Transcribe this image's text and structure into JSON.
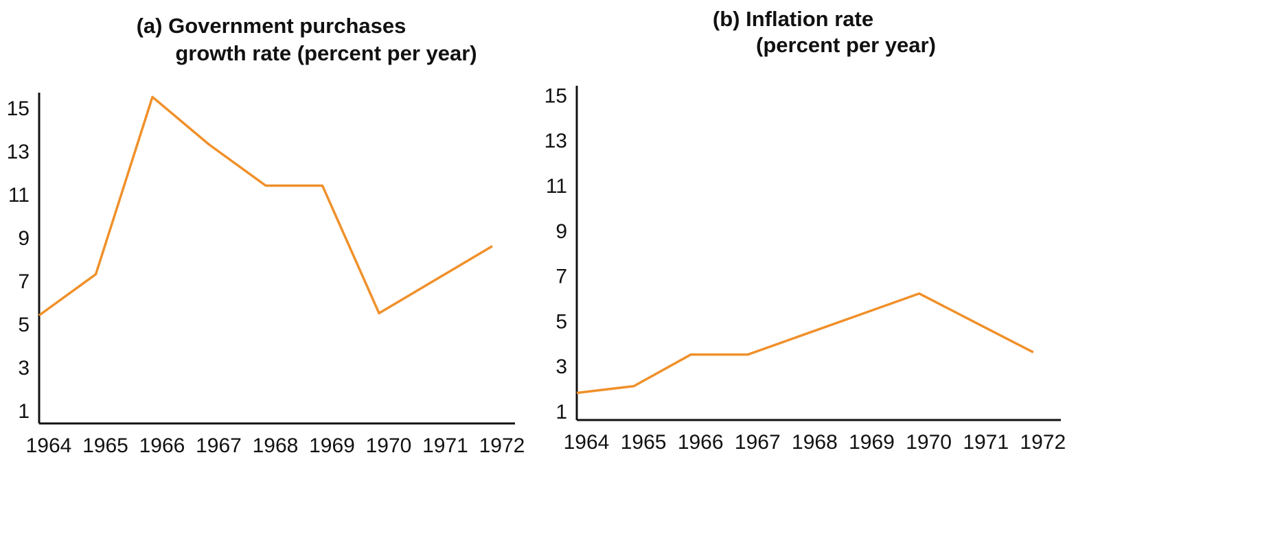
{
  "chart_data": [
    {
      "type": "line",
      "title": [
        "(a) Government purchases",
        "growth rate (percent per year)"
      ],
      "categories": [
        "1964",
        "1965",
        "1966",
        "1967",
        "1968",
        "1969",
        "1970",
        "1971",
        "1972"
      ],
      "series": [
        {
          "name": "Government purchases growth rate",
          "color": "#f0902a",
          "values": [
            5.5,
            7.4,
            15.6,
            13.4,
            11.5,
            11.5,
            5.6,
            7.15,
            8.7
          ]
        }
      ],
      "ylim": [
        0.5,
        15.8
      ],
      "yticks": [
        1,
        3,
        5,
        7,
        9,
        11,
        13,
        15
      ],
      "grid": false
    },
    {
      "type": "line",
      "title": [
        "(b) Inflation rate",
        "(percent per year)"
      ],
      "categories": [
        "1964",
        "1965",
        "1966",
        "1967",
        "1968",
        "1969",
        "1970",
        "1971",
        "1972"
      ],
      "series": [
        {
          "name": "Inflation rate",
          "color": "#f0902a",
          "values": [
            1.9,
            2.2,
            3.6,
            3.6,
            4.5,
            5.4,
            6.3,
            5.0,
            3.7
          ]
        }
      ],
      "ylim": [
        0.7,
        15.5
      ],
      "yticks": [
        1,
        3,
        5,
        7,
        9,
        11,
        13,
        15
      ],
      "grid": false
    }
  ]
}
